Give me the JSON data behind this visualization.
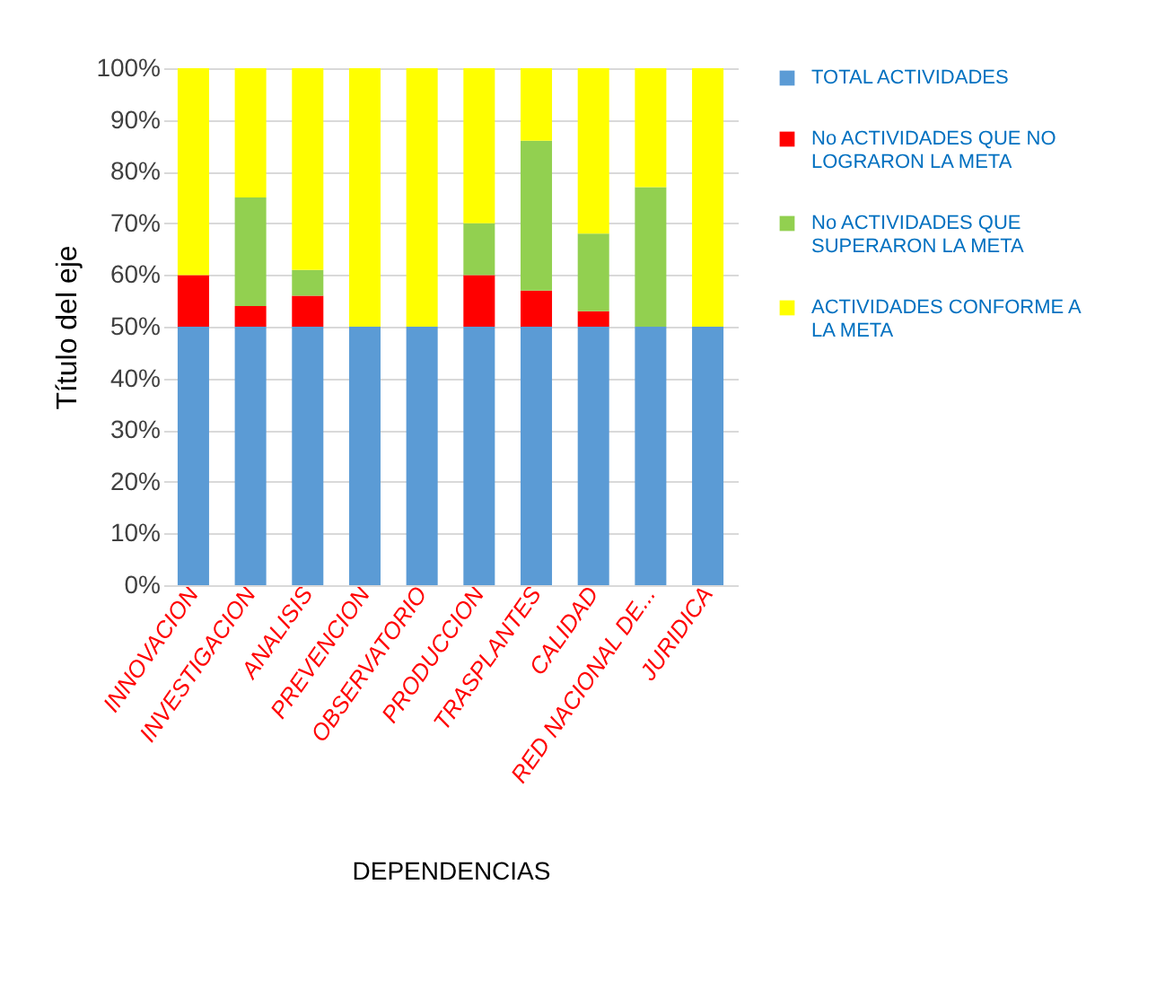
{
  "chart_data": {
    "type": "bar",
    "stacked": true,
    "xlabel": "DEPENDENCIAS",
    "ylabel": "Título del eje",
    "categories": [
      "INNOVACION",
      "INVESTIGACION",
      "ANALISIS",
      "PREVENCION",
      "OBSERVATORIO",
      "PRODUCCION",
      "TRASPLANTES",
      "CALIDAD",
      "RED NACIONAL DE...",
      "JURIDICA"
    ],
    "series": [
      {
        "name": "TOTAL ACTIVIDADES",
        "color": "#5b9bd5",
        "values": [
          50,
          50,
          50,
          50,
          50,
          50,
          50,
          50,
          50,
          50
        ]
      },
      {
        "name": "No ACTIVIDADES  QUE NO LOGRARON LA META",
        "color": "#ff0000",
        "values": [
          10,
          4,
          6,
          0,
          0,
          10,
          7,
          3,
          0,
          0
        ]
      },
      {
        "name": "No ACTIVIDADES  QUE SUPERARON  LA META",
        "color": "#92d050",
        "values": [
          0,
          21,
          5,
          0,
          0,
          10,
          29,
          15,
          27,
          0
        ]
      },
      {
        "name": "ACTIVIDADES CONFORME A LA META",
        "color": "#ffff00",
        "values": [
          40,
          25,
          39,
          50,
          50,
          30,
          14,
          32,
          23,
          50
        ]
      }
    ],
    "ylim": [
      0,
      100
    ],
    "yticks": [
      {
        "value": 0,
        "label": "0%"
      },
      {
        "value": 10,
        "label": "10%"
      },
      {
        "value": 20,
        "label": "20%"
      },
      {
        "value": 30,
        "label": "30%"
      },
      {
        "value": 40,
        "label": "40%"
      },
      {
        "value": 50,
        "label": "50%"
      },
      {
        "value": 60,
        "label": "60%"
      },
      {
        "value": 70,
        "label": "70%"
      },
      {
        "value": 80,
        "label": "80%"
      },
      {
        "value": 90,
        "label": "90%"
      },
      {
        "value": 100,
        "label": "100%"
      }
    ],
    "grid": "y",
    "legend": "right"
  }
}
